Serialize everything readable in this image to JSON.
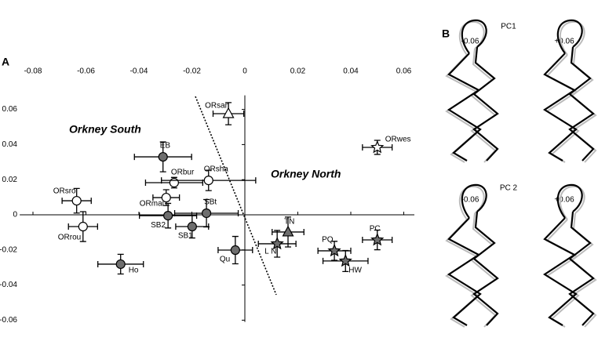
{
  "panel_labels": [
    "A",
    "B"
  ],
  "chart_data": {
    "type": "scatter",
    "annotations": [
      "Orkney South",
      "Orkney North"
    ],
    "xlim": [
      -0.085,
      0.064
    ],
    "ylim": [
      -0.061,
      0.068
    ],
    "xticks": [
      -0.08,
      -0.06,
      -0.04,
      -0.02,
      0,
      0.02,
      0.04,
      0.06
    ],
    "yticks": [
      -0.06,
      -0.04,
      -0.02,
      0,
      0.02,
      0.04,
      0.06
    ],
    "points": [
      {
        "label": "ORsan",
        "x": -0.0062,
        "y": 0.0576,
        "xerr": 0.0058,
        "yerr": 0.0063,
        "marker": "triangle",
        "color": "#ffffff"
      },
      {
        "label": "ORwes",
        "x": 0.05,
        "y": 0.0384,
        "xerr": 0.0056,
        "yerr": 0.004,
        "marker": "star",
        "color": "#ffffff"
      },
      {
        "label": "EB",
        "x": -0.0309,
        "y": 0.033,
        "xerr": 0.0108,
        "yerr": 0.0085,
        "marker": "circle",
        "color": "#6e6e6e"
      },
      {
        "label": "ORbur",
        "x": -0.0267,
        "y": 0.0183,
        "xerr": 0.0108,
        "yerr": 0.003,
        "marker": "circle",
        "color": "#ffffff"
      },
      {
        "label": "ORsha",
        "x": -0.0137,
        "y": 0.0196,
        "xerr": 0.0178,
        "yerr": 0.0058,
        "marker": "circle",
        "color": "#ffffff"
      },
      {
        "label": "ORsro",
        "x": -0.0635,
        "y": 0.008,
        "xerr": 0.0055,
        "yerr": 0.007,
        "marker": "circle",
        "color": "#ffffff"
      },
      {
        "label": "ORrou",
        "x": -0.0611,
        "y": -0.0067,
        "xerr": 0.0055,
        "yerr": 0.0085,
        "marker": "circle",
        "color": "#ffffff"
      },
      {
        "label": "ORmai",
        "x": -0.0297,
        "y": 0.0098,
        "xerr": 0.005,
        "yerr": 0.0045,
        "marker": "circle",
        "color": "#ffffff"
      },
      {
        "label": "SB2",
        "x": -0.029,
        "y": -0.0005,
        "xerr": 0.0108,
        "yerr": 0.007,
        "marker": "circle",
        "color": "#6e6e6e"
      },
      {
        "label": "SBt",
        "x": -0.0145,
        "y": 0.0009,
        "xerr": 0.012,
        "yerr": 0.0078,
        "marker": "circle",
        "color": "#6e6e6e"
      },
      {
        "label": "SB1",
        "x": -0.0199,
        "y": -0.0067,
        "xerr": 0.0062,
        "yerr": 0.0065,
        "marker": "circle",
        "color": "#6e6e6e"
      },
      {
        "label": "Ho",
        "x": -0.0469,
        "y": -0.0281,
        "xerr": 0.0086,
        "yerr": 0.0056,
        "marker": "circle",
        "color": "#6e6e6e"
      },
      {
        "label": "Qu",
        "x": -0.0036,
        "y": -0.0201,
        "xerr": 0.0065,
        "yerr": 0.0078,
        "marker": "circle",
        "color": "#6e6e6e"
      },
      {
        "label": "TN",
        "x": 0.0163,
        "y": -0.0098,
        "xerr": 0.006,
        "yerr": 0.0085,
        "marker": "triangle",
        "color": "#6e6e6e"
      },
      {
        "label": "L N",
        "x": 0.0122,
        "y": -0.0165,
        "xerr": 0.0071,
        "yerr": 0.0076,
        "marker": "star",
        "color": "#6e6e6e"
      },
      {
        "label": "PQ",
        "x": 0.0338,
        "y": -0.0205,
        "xerr": 0.0062,
        "yerr": 0.0054,
        "marker": "star",
        "color": "#6e6e6e"
      },
      {
        "label": "HW",
        "x": 0.038,
        "y": -0.0263,
        "xerr": 0.0085,
        "yerr": 0.006,
        "marker": "star",
        "color": "#6e6e6e"
      },
      {
        "label": "PC",
        "x": 0.05,
        "y": -0.0143,
        "xerr": 0.0056,
        "yerr": 0.0056,
        "marker": "star",
        "color": "#6e6e6e"
      }
    ]
  },
  "shape_panel": {
    "rows": [
      {
        "title": "PC1",
        "left": "-0.06",
        "right": "+0.06"
      },
      {
        "title": "PC 2",
        "left": "-0.06",
        "right": "+0.06"
      }
    ]
  }
}
